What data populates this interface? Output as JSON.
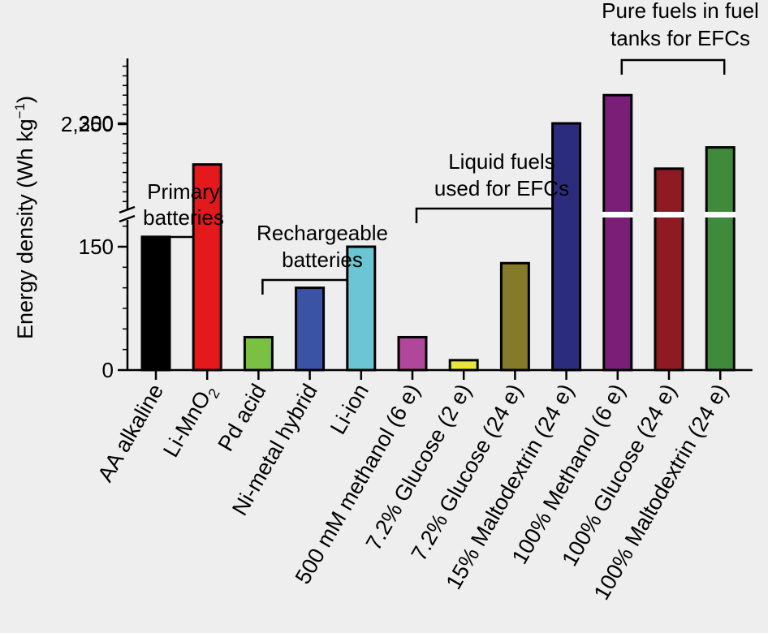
{
  "chart_data": {
    "type": "bar",
    "ylabel": "Energy density (Wh kg",
    "ylabel_sup": "−1",
    "ylabel_close": ")",
    "broken_axis": true,
    "y_ticks_lower": [
      {
        "value": 0,
        "label": "0"
      },
      {
        "value": 150,
        "label": "150"
      },
      {
        "value": 300,
        "label": "300"
      }
    ],
    "y_ticks_upper": [
      {
        "value": 2250,
        "label": "2,250"
      }
    ],
    "categories": [
      {
        "label": "AA alkaline",
        "sub": ""
      },
      {
        "label": "Li-MnO",
        "sub": "2"
      },
      {
        "label": "Pd acid",
        "sub": ""
      },
      {
        "label": "Ni-metal hybrid",
        "sub": ""
      },
      {
        "label": "Li-ion",
        "sub": ""
      },
      {
        "label": "500 mM methanol (6 e)",
        "sub": ""
      },
      {
        "label": "7.2% Glucose (2 e)",
        "sub": ""
      },
      {
        "label": "7.2% Glucose (24 e)",
        "sub": ""
      },
      {
        "label": "15% Maltodextrin (24 e)",
        "sub": ""
      },
      {
        "label": "100% Methanol (6 e)",
        "sub": ""
      },
      {
        "label": "100% Glucose (24 e)",
        "sub": ""
      },
      {
        "label": "100% Maltodextrin (24 e)",
        "sub": ""
      }
    ],
    "values": [
      162,
      250,
      40,
      100,
      150,
      40,
      12,
      130,
      300,
      2400,
      2020,
      2130
    ],
    "colors": [
      "#000000",
      "#e3191c",
      "#7ac143",
      "#3b53a4",
      "#6cc5d3",
      "#b0479a",
      "#e8e63a",
      "#857a2a",
      "#2b2d7c",
      "#7a1f78",
      "#8e1b24",
      "#3f8a3b"
    ],
    "groups": [
      {
        "lines": [
          "Primary",
          "batteries"
        ],
        "from": 0,
        "to": 1
      },
      {
        "lines": [
          "Rechargeable",
          "batteries"
        ],
        "from": 2,
        "to": 4
      },
      {
        "lines": [
          "Liquid fuels",
          "used for EFCs"
        ],
        "from": 5,
        "to": 8
      },
      {
        "lines": [
          "Pure fuels in fuel",
          "tanks for EFCs"
        ],
        "from": 9,
        "to": 11
      }
    ]
  }
}
